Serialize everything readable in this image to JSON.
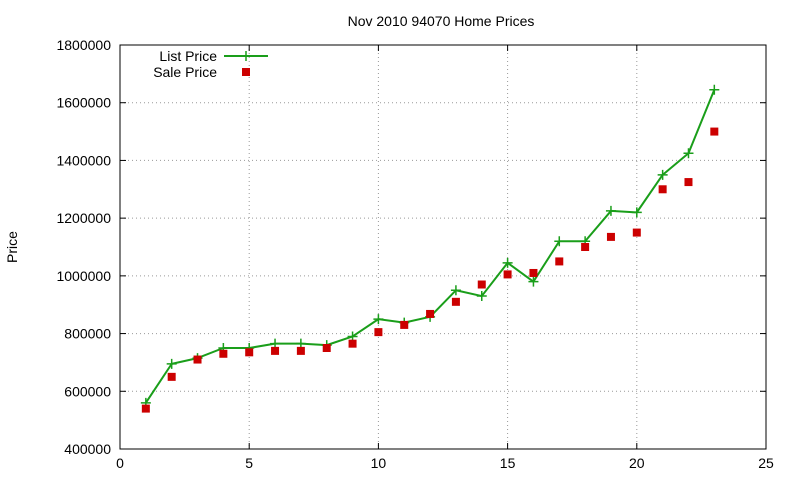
{
  "chart_data": {
    "type": "line",
    "title": "Nov 2010 94070 Home Prices",
    "xlabel": "",
    "ylabel": "Price",
    "xlim": [
      0,
      25
    ],
    "ylim": [
      400000,
      1800000
    ],
    "xticks": [
      0,
      5,
      10,
      15,
      20,
      25
    ],
    "yticks": [
      400000,
      600000,
      800000,
      1000000,
      1200000,
      1400000,
      1600000,
      1800000
    ],
    "grid": true,
    "legend": "top-left",
    "x": [
      1,
      2,
      3,
      4,
      5,
      6,
      7,
      8,
      9,
      10,
      11,
      12,
      13,
      14,
      15,
      16,
      17,
      18,
      19,
      20,
      21,
      22,
      23
    ],
    "series": [
      {
        "name": "List Price",
        "style": "line-points",
        "marker": "plus",
        "color": "#1a9e1a",
        "values": [
          560000,
          695000,
          715000,
          750000,
          750000,
          765000,
          765000,
          760000,
          790000,
          850000,
          838000,
          858000,
          950000,
          930000,
          1045000,
          980000,
          1120000,
          1120000,
          1225000,
          1220000,
          1350000,
          1425000,
          1645000
        ]
      },
      {
        "name": "Sale Price",
        "style": "points",
        "marker": "square",
        "color": "#cc0000",
        "values": [
          540000,
          650000,
          710000,
          730000,
          735000,
          740000,
          740000,
          750000,
          765000,
          805000,
          830000,
          868000,
          910000,
          970000,
          1005000,
          1010000,
          1050000,
          1100000,
          1135000,
          1150000,
          1300000,
          1325000,
          1500000
        ]
      }
    ]
  }
}
